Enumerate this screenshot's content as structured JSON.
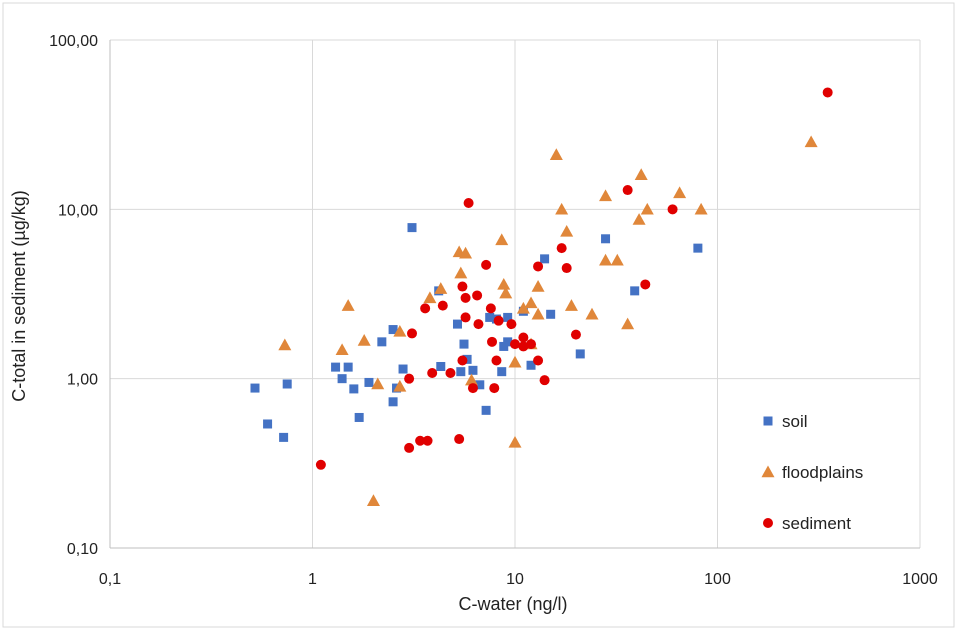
{
  "chart_data": {
    "type": "scatter",
    "title": "",
    "xlabel": "C-water (ng/l)",
    "ylabel": "C-total in sediment (µg/kg)",
    "x_scale": "log",
    "y_scale": "log",
    "xlim": [
      0.1,
      1000
    ],
    "ylim": [
      0.1,
      100
    ],
    "x_ticks": [
      0.1,
      1,
      10,
      100,
      1000
    ],
    "x_tick_labels": [
      "0,1",
      "1",
      "10",
      "100",
      "1000"
    ],
    "y_ticks": [
      0.1,
      1,
      10,
      100
    ],
    "y_tick_labels": [
      "0,10",
      "1,00",
      "10,00",
      "100,00"
    ],
    "grid": true,
    "legend_position": "bottom-right",
    "series": [
      {
        "name": "soil",
        "marker": "square",
        "color": "#4472C4",
        "points": [
          [
            0.52,
            0.88
          ],
          [
            0.6,
            0.54
          ],
          [
            0.72,
            0.45
          ],
          [
            0.75,
            0.93
          ],
          [
            1.3,
            1.17
          ],
          [
            1.4,
            1.0
          ],
          [
            1.5,
            1.17
          ],
          [
            1.6,
            0.87
          ],
          [
            1.7,
            0.59
          ],
          [
            1.9,
            0.95
          ],
          [
            2.2,
            1.65
          ],
          [
            2.5,
            0.73
          ],
          [
            2.5,
            1.95
          ],
          [
            2.6,
            0.88
          ],
          [
            2.8,
            1.14
          ],
          [
            3.1,
            7.8
          ],
          [
            4.2,
            3.3
          ],
          [
            4.3,
            1.18
          ],
          [
            5.2,
            2.1
          ],
          [
            5.4,
            1.1
          ],
          [
            5.6,
            1.6
          ],
          [
            5.8,
            1.3
          ],
          [
            6.2,
            1.12
          ],
          [
            6.7,
            0.92
          ],
          [
            7.2,
            0.65
          ],
          [
            7.5,
            2.3
          ],
          [
            8.1,
            2.25
          ],
          [
            8.6,
            1.1
          ],
          [
            8.8,
            1.55
          ],
          [
            9.2,
            2.3
          ],
          [
            9.2,
            1.65
          ],
          [
            11,
            2.5
          ],
          [
            12,
            1.2
          ],
          [
            14,
            5.1
          ],
          [
            15,
            2.4
          ],
          [
            21,
            1.4
          ],
          [
            28,
            6.7
          ],
          [
            39,
            3.3
          ],
          [
            80,
            5.9
          ]
        ]
      },
      {
        "name": "floodplains",
        "marker": "triangle",
        "color": "#E0873A",
        "points": [
          [
            0.73,
            1.58
          ],
          [
            1.4,
            1.48
          ],
          [
            1.5,
            2.7
          ],
          [
            1.8,
            1.68
          ],
          [
            2.1,
            0.93
          ],
          [
            2.0,
            0.19
          ],
          [
            2.7,
            0.9
          ],
          [
            2.7,
            1.9
          ],
          [
            3.8,
            3.0
          ],
          [
            4.3,
            3.4
          ],
          [
            5.3,
            5.6
          ],
          [
            5.4,
            4.2
          ],
          [
            5.7,
            5.5
          ],
          [
            6.1,
            0.98
          ],
          [
            8.6,
            6.6
          ],
          [
            8.8,
            3.6
          ],
          [
            9.0,
            3.2
          ],
          [
            10,
            0.42
          ],
          [
            10,
            1.25
          ],
          [
            11,
            2.6
          ],
          [
            12,
            2.8
          ],
          [
            12,
            1.6
          ],
          [
            13,
            3.5
          ],
          [
            13,
            2.4
          ],
          [
            16,
            21
          ],
          [
            17,
            10
          ],
          [
            18,
            7.4
          ],
          [
            19,
            2.7
          ],
          [
            24,
            2.4
          ],
          [
            28,
            5.0
          ],
          [
            28,
            12
          ],
          [
            32,
            5.0
          ],
          [
            36,
            2.1
          ],
          [
            41,
            8.7
          ],
          [
            42,
            16
          ],
          [
            45,
            10
          ],
          [
            65,
            12.5
          ],
          [
            83,
            10
          ],
          [
            290,
            25
          ]
        ]
      },
      {
        "name": "sediment",
        "marker": "circle",
        "color": "#E00000",
        "points": [
          [
            1.1,
            0.31
          ],
          [
            3.0,
            0.39
          ],
          [
            3.1,
            1.85
          ],
          [
            3.4,
            0.43
          ],
          [
            3.7,
            0.43
          ],
          [
            3.6,
            2.6
          ],
          [
            3.9,
            1.08
          ],
          [
            3.0,
            1.0
          ],
          [
            4.4,
            2.7
          ],
          [
            4.8,
            1.08
          ],
          [
            5.3,
            0.44
          ],
          [
            5.5,
            1.28
          ],
          [
            5.5,
            3.5
          ],
          [
            5.7,
            2.3
          ],
          [
            5.7,
            3.0
          ],
          [
            5.9,
            10.9
          ],
          [
            6.2,
            0.88
          ],
          [
            6.5,
            3.1
          ],
          [
            6.6,
            2.1
          ],
          [
            7.2,
            4.7
          ],
          [
            7.6,
            2.6
          ],
          [
            7.7,
            1.65
          ],
          [
            7.9,
            0.88
          ],
          [
            8.1,
            1.28
          ],
          [
            8.3,
            2.2
          ],
          [
            9.6,
            2.1
          ],
          [
            10,
            1.6
          ],
          [
            11,
            1.55
          ],
          [
            11,
            1.75
          ],
          [
            12,
            1.6
          ],
          [
            13,
            1.28
          ],
          [
            13,
            4.6
          ],
          [
            14,
            0.98
          ],
          [
            17,
            5.9
          ],
          [
            18,
            4.5
          ],
          [
            20,
            1.82
          ],
          [
            36,
            13
          ],
          [
            44,
            3.6
          ],
          [
            60,
            10
          ],
          [
            350,
            49
          ]
        ]
      }
    ]
  }
}
